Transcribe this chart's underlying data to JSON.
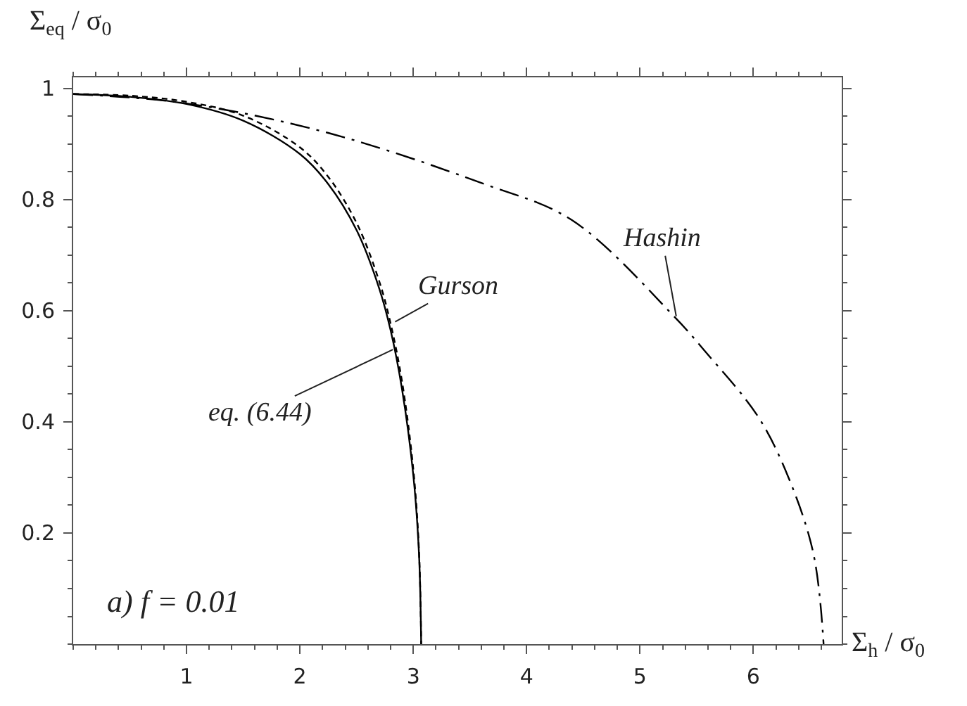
{
  "chart_data": {
    "type": "line",
    "xlabel": "Σ$_{h}$ / σ$_{0}$",
    "ylabel": "Σ$_{eq}$ / σ$_{0}$",
    "xlim": [
      0,
      6.78
    ],
    "ylim": [
      0,
      1.02
    ],
    "xticks": [
      1,
      2,
      3,
      4,
      5,
      6
    ],
    "yticks": [
      0.2,
      0.4,
      0.6,
      0.8,
      1
    ],
    "marker": "none",
    "series": [
      {
        "color": "#000000",
        "line_style": "dashed",
        "x": [
          0,
          0.5,
          1,
          1.5,
          2,
          2.25,
          2.5,
          2.7,
          2.8,
          2.9,
          3.0,
          3.05,
          3.07
        ],
        "values": [
          0.99,
          0.987,
          0.976,
          0.951,
          0.894,
          0.841,
          0.758,
          0.653,
          0.577,
          0.474,
          0.316,
          0.172,
          0
        ]
      },
      {
        "color": "#000000",
        "line_style": "solid",
        "x": [
          0,
          0.5,
          1,
          1.5,
          2,
          2.25,
          2.5,
          2.7,
          2.8,
          2.9,
          3.0,
          3.05,
          3.07
        ],
        "values": [
          0.99,
          0.985,
          0.972,
          0.942,
          0.882,
          0.828,
          0.745,
          0.64,
          0.565,
          0.46,
          0.305,
          0.165,
          0
        ]
      },
      {
        "color": "#000000",
        "line_style": "dashed",
        "x": [
          0,
          1,
          2.25,
          3.6,
          4.4,
          5.3,
          5.57,
          6.04,
          6.31,
          6.53,
          6.62
        ],
        "values": [
          0.99,
          0.973,
          0.92,
          0.83,
          0.763,
          0.59,
          0.528,
          0.41,
          0.3,
          0.163,
          0
        ]
      }
    ],
    "annotations": [
      {
        "text": "Gurson",
        "x": 2.84,
        "y": 0.58
      },
      {
        "text": "eq. (6.44)",
        "x": 2.82,
        "y": 0.53
      },
      {
        "text": "Hashin",
        "x": 5.32,
        "y": 0.59
      },
      "a) f = 0.01"
    ]
  }
}
